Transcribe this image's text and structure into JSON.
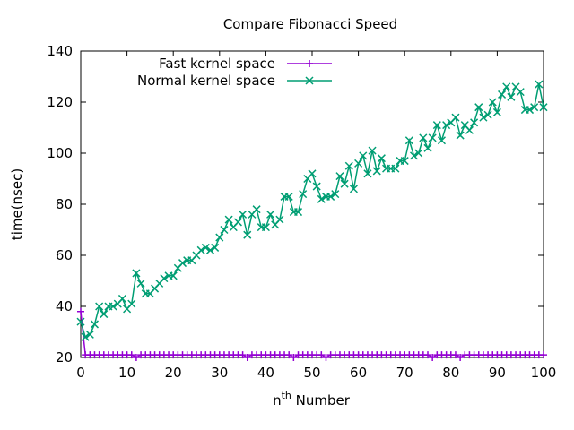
{
  "chart_data": {
    "type": "line",
    "title": "Compare Fibonacci Speed",
    "xlabel": {
      "prefix": "n",
      "sup": "th",
      "suffix": " Number"
    },
    "ylabel": "time(nsec)",
    "xlim": [
      0,
      100
    ],
    "ylim": [
      20,
      140
    ],
    "xticks": [
      0,
      10,
      20,
      30,
      40,
      50,
      60,
      70,
      80,
      90,
      100
    ],
    "yticks": [
      20,
      40,
      60,
      80,
      100,
      120,
      140
    ],
    "grid": false,
    "legend_position": "top-left",
    "series": [
      {
        "name": "Fast kernel space",
        "color": "#9400d3",
        "marker": "plus",
        "x": [
          0,
          1,
          2,
          3,
          4,
          5,
          6,
          7,
          8,
          9,
          10,
          11,
          12,
          13,
          14,
          15,
          16,
          17,
          18,
          19,
          20,
          21,
          22,
          23,
          24,
          25,
          26,
          27,
          28,
          29,
          30,
          31,
          32,
          33,
          34,
          35,
          36,
          37,
          38,
          39,
          40,
          41,
          42,
          43,
          44,
          45,
          46,
          47,
          48,
          49,
          50,
          51,
          52,
          53,
          54,
          55,
          56,
          57,
          58,
          59,
          60,
          61,
          62,
          63,
          64,
          65,
          66,
          67,
          68,
          69,
          70,
          71,
          72,
          73,
          74,
          75,
          76,
          77,
          78,
          79,
          80,
          81,
          82,
          83,
          84,
          85,
          86,
          87,
          88,
          89,
          90,
          91,
          92,
          93,
          94,
          95,
          96,
          97,
          98,
          99,
          100
        ],
        "y": [
          38,
          21,
          21,
          21,
          21,
          21,
          21,
          21,
          21,
          21,
          21,
          21,
          20,
          21,
          21,
          21,
          21,
          21,
          21,
          21,
          21,
          21,
          21,
          21,
          21,
          21,
          21,
          21,
          21,
          21,
          21,
          21,
          21,
          21,
          21,
          21,
          20,
          21,
          21,
          21,
          21,
          21,
          21,
          21,
          21,
          21,
          20,
          21,
          21,
          21,
          21,
          21,
          21,
          20,
          21,
          21,
          21,
          21,
          21,
          21,
          21,
          21,
          21,
          21,
          21,
          21,
          21,
          21,
          21,
          21,
          21,
          21,
          21,
          21,
          21,
          21,
          20,
          21,
          21,
          21,
          21,
          21,
          20,
          21,
          21,
          21,
          21,
          21,
          21,
          21,
          21,
          21,
          21,
          21,
          21,
          21,
          21,
          21,
          21,
          21,
          21
        ]
      },
      {
        "name": "Normal kernel space",
        "color": "#009e73",
        "marker": "cross",
        "x": [
          0,
          1,
          2,
          3,
          4,
          5,
          6,
          7,
          8,
          9,
          10,
          11,
          12,
          13,
          14,
          15,
          16,
          17,
          18,
          19,
          20,
          21,
          22,
          23,
          24,
          25,
          26,
          27,
          28,
          29,
          30,
          31,
          32,
          33,
          34,
          35,
          36,
          37,
          38,
          39,
          40,
          41,
          42,
          43,
          44,
          45,
          46,
          47,
          48,
          49,
          50,
          51,
          52,
          53,
          54,
          55,
          56,
          57,
          58,
          59,
          60,
          61,
          62,
          63,
          64,
          65,
          66,
          67,
          68,
          69,
          70,
          71,
          72,
          73,
          74,
          75,
          76,
          77,
          78,
          79,
          80,
          81,
          82,
          83,
          84,
          85,
          86,
          87,
          88,
          89,
          90,
          91,
          92,
          93,
          94,
          95,
          96,
          97,
          98,
          99,
          100
        ],
        "y": [
          34,
          28,
          29,
          33,
          40,
          37,
          40,
          40,
          41,
          43,
          39,
          41,
          53,
          49,
          45,
          45,
          47,
          49,
          51,
          52,
          52,
          55,
          57,
          58,
          58,
          60,
          62,
          63,
          62,
          63,
          67,
          70,
          74,
          71,
          73,
          76,
          68,
          76,
          78,
          71,
          71,
          76,
          72,
          74,
          83,
          83,
          77,
          77,
          84,
          90,
          92,
          87,
          82,
          83,
          83,
          84,
          91,
          88,
          95,
          86,
          96,
          99,
          92,
          101,
          93,
          98,
          94,
          94,
          94,
          97,
          97,
          105,
          99,
          100,
          106,
          102,
          106,
          111,
          105,
          111,
          112,
          114,
          107,
          111,
          109,
          112,
          118,
          114,
          115,
          120,
          116,
          123,
          126,
          122,
          126,
          124,
          117,
          117,
          118,
          127,
          118
        ]
      }
    ]
  }
}
